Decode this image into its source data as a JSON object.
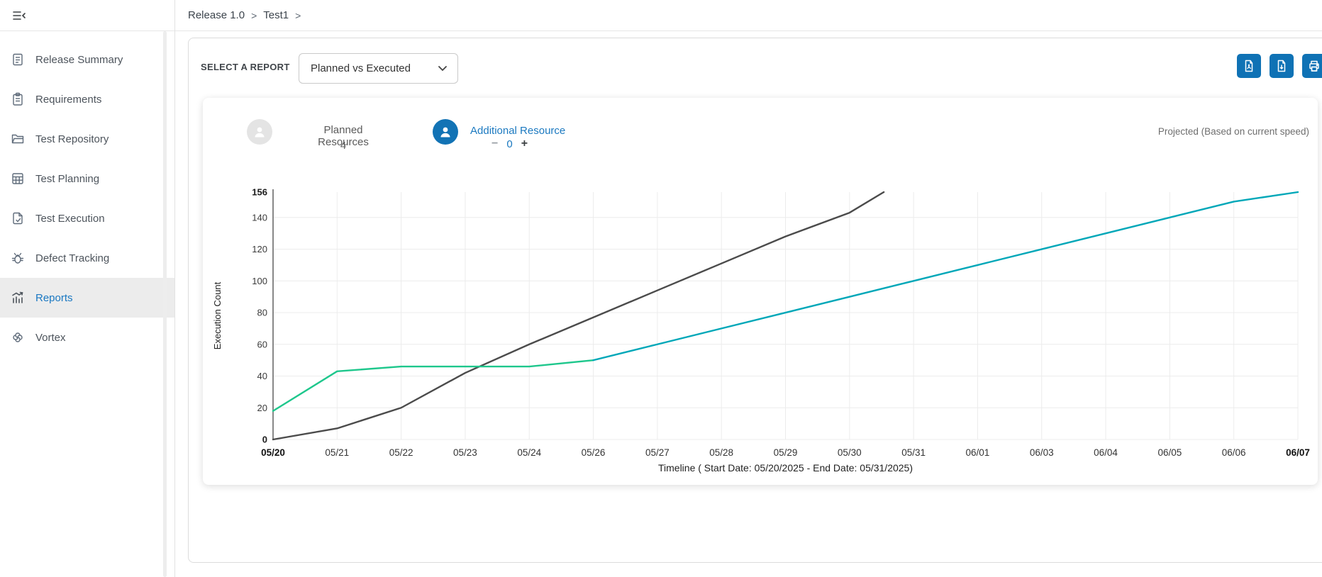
{
  "breadcrumb": {
    "items": [
      "Release 1.0",
      "Test1"
    ],
    "separator": ">"
  },
  "sidebar": {
    "items": [
      {
        "label": "Release Summary",
        "icon": "document-icon"
      },
      {
        "label": "Requirements",
        "icon": "clipboard-icon"
      },
      {
        "label": "Test Repository",
        "icon": "folder-icon"
      },
      {
        "label": "Test Planning",
        "icon": "table-icon"
      },
      {
        "label": "Test Execution",
        "icon": "document-check-icon"
      },
      {
        "label": "Defect Tracking",
        "icon": "bug-icon"
      },
      {
        "label": "Reports",
        "icon": "bar-chart-icon",
        "active": true
      },
      {
        "label": "Vortex",
        "icon": "pinwheel-icon"
      }
    ]
  },
  "report_selector": {
    "label": "SELECT A REPORT",
    "selected": "Planned vs Executed"
  },
  "toolbar": {
    "buttons": [
      "export-pdf",
      "export-file",
      "print"
    ],
    "color": "#0f72b5"
  },
  "resources": {
    "planned": {
      "label": "Planned Resources",
      "value": "4"
    },
    "additional": {
      "label": "Additional Resource",
      "value": "0",
      "minus": "−",
      "plus": "+"
    }
  },
  "projection_note": "Projected (Based on current speed)",
  "chart_data": {
    "type": "line",
    "title": "",
    "xlabel": "Timeline ( Start Date: 05/20/2025 - End Date: 05/31/2025)",
    "ylabel": "Execution Count",
    "categories": [
      "05/20",
      "05/21",
      "05/22",
      "05/23",
      "05/24",
      "05/26",
      "05/27",
      "05/28",
      "05/29",
      "05/30",
      "05/31",
      "06/01",
      "06/03",
      "06/04",
      "06/05",
      "06/06",
      "06/07"
    ],
    "y_ticks": [
      0,
      20,
      40,
      60,
      80,
      100,
      120,
      140,
      156
    ],
    "ylim": [
      0,
      156
    ],
    "grid": true,
    "legend_position": "none",
    "bold_x_labels": [
      "05/20",
      "06/07"
    ],
    "bold_y_labels": [
      0,
      156
    ],
    "series": [
      {
        "name": "Planned",
        "color": "#4b4b4b",
        "values": [
          0,
          7,
          20,
          42,
          60,
          77,
          94,
          111,
          128,
          143,
          156,
          null,
          null,
          null,
          null,
          null,
          null
        ]
      },
      {
        "name": "Executed",
        "color": "#1ec78c",
        "values": [
          18,
          43,
          46,
          46,
          46,
          50,
          null,
          null,
          null,
          null,
          null,
          null,
          null,
          null,
          null,
          null,
          null
        ]
      },
      {
        "name": "Projected (Based on current speed)",
        "color": "#00a7b8",
        "values": [
          null,
          null,
          null,
          null,
          null,
          50,
          60,
          70,
          80,
          90,
          100,
          110,
          120,
          130,
          140,
          150,
          156
        ]
      }
    ]
  }
}
